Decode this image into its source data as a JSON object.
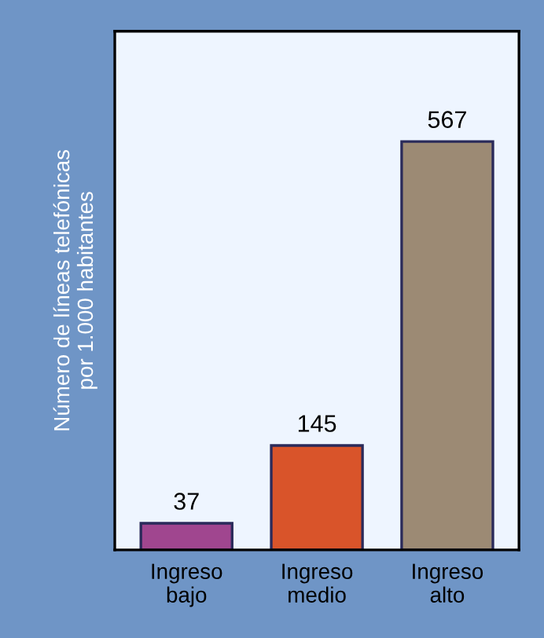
{
  "chart_data": {
    "type": "bar",
    "ylabel": "Número de líneas telefónicas\npor 1.000 habitantes",
    "categories": [
      "Ingreso\nbajo",
      "Ingreso\nmedio",
      "Ingreso\nalto"
    ],
    "values": [
      37,
      145,
      567
    ],
    "colors": [
      "#a0468f",
      "#d9542a",
      "#9c8a74"
    ],
    "data_labels": true
  }
}
